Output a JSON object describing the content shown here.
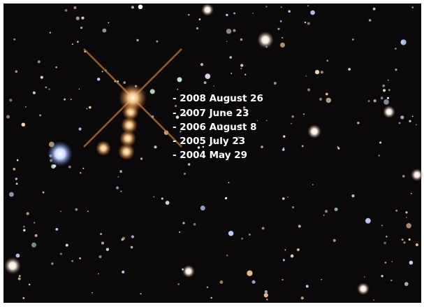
{
  "labels": [
    "- 2008 August 26",
    "- 2007 June 23",
    "- 2006 August 8",
    "- 2005 July 23",
    "- 2004 May 29"
  ]
}
